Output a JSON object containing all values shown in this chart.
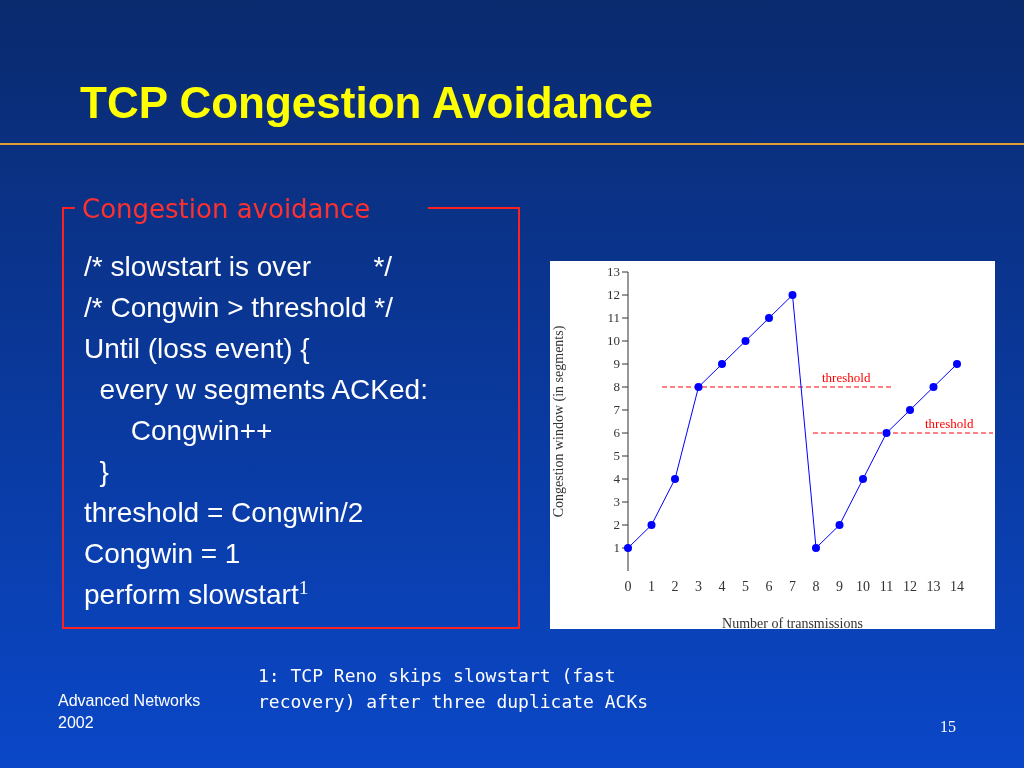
{
  "chart_data": {
    "type": "line",
    "title": "TCP Congestion Avoidance",
    "xlabel": "Number of transmissions",
    "ylabel": "Congestion window (in segments)",
    "x": [
      0,
      1,
      2,
      3,
      4,
      5,
      6,
      7,
      8,
      9,
      10,
      11,
      12,
      13,
      14
    ],
    "series": [
      {
        "color": "#0000ff",
        "values": [
          1,
          2,
          4,
          8,
          9,
          10,
          11,
          12,
          1,
          2,
          4,
          6,
          7,
          8,
          9
        ]
      }
    ],
    "xlim": [
      0,
      14
    ],
    "xticks": [
      0,
      1,
      2,
      3,
      4,
      5,
      6,
      7,
      8,
      9,
      10,
      11,
      12,
      13,
      14
    ],
    "ylim": [
      0,
      13
    ],
    "yticks": [
      1,
      2,
      3,
      4,
      5,
      6,
      7,
      8,
      9,
      10,
      11,
      12,
      13
    ],
    "ref_lines": [
      {
        "axis": "y",
        "value": 8,
        "label": "threshold",
        "color": "#ff0000",
        "line_style": "dashed"
      },
      {
        "axis": "y",
        "value": 6,
        "label": "threshold",
        "color": "#ff0000",
        "line_style": "dashed"
      }
    ],
    "marker": "circle",
    "line_style": "solid",
    "grid": false,
    "annotations": [
      "Congestion avoidance",
      "/* slowstart is over        */",
      "/* Congwin > threshold */",
      "Until (loss event) {",
      "  every w segments ACKed:",
      "      Congwin++",
      "  }",
      "threshold = Congwin/2",
      "Congwin = 1",
      "perform slowstart$^{1}$",
      "1: TCP Reno skips slowstart (fast recovery) after three duplicate ACKs",
      "Advanced Networks 2002",
      "15"
    ]
  }
}
